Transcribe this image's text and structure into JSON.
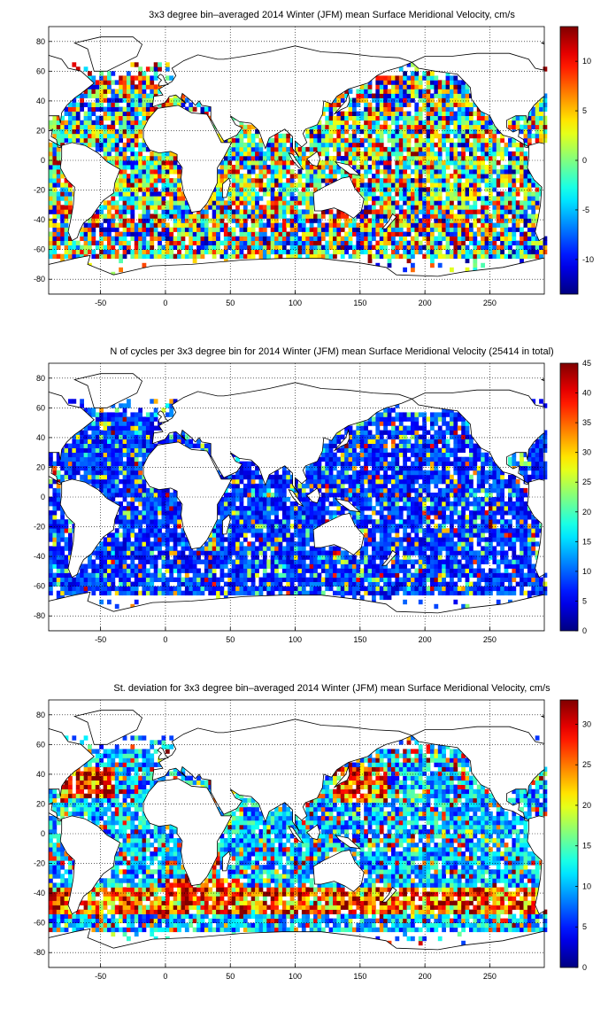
{
  "chart_data": [
    {
      "type": "heatmap",
      "title": "3x3 degree bin–averaged 2014 Winter (JFM) mean Surface Meridional Velocity, cm/s",
      "xlabel": "",
      "ylabel": "",
      "xlim": [
        -90,
        292
      ],
      "ylim": [
        -90,
        90
      ],
      "xticks": [
        "-50",
        "0",
        "50",
        "100",
        "150",
        "200",
        "250"
      ],
      "yticks": [
        "80",
        "60",
        "40",
        "20",
        "0",
        "-20",
        "-40",
        "-60",
        "-80"
      ],
      "colorbar": {
        "min": -13.5,
        "max": 13.5,
        "ticks": [
          "10",
          "5",
          "0",
          "-5",
          "-10"
        ],
        "tick_values": [
          10,
          5,
          0,
          -5,
          -10
        ],
        "colormap": "jet"
      },
      "grid": true,
      "field": "velocity"
    },
    {
      "type": "heatmap",
      "title": "N of cycles per 3x3 degree bin for 2014 Winter (JFM) mean Surface Meridional Velocity (25414 in total)",
      "xlabel": "",
      "ylabel": "",
      "xlim": [
        -90,
        292
      ],
      "ylim": [
        -90,
        90
      ],
      "xticks": [
        "-50",
        "0",
        "50",
        "100",
        "150",
        "200",
        "250"
      ],
      "yticks": [
        "80",
        "60",
        "40",
        "20",
        "0",
        "-20",
        "-40",
        "-60",
        "-80"
      ],
      "colorbar": {
        "min": 0,
        "max": 45,
        "ticks": [
          "45",
          "40",
          "35",
          "30",
          "25",
          "20",
          "15",
          "10",
          "5",
          "0"
        ],
        "tick_values": [
          45,
          40,
          35,
          30,
          25,
          20,
          15,
          10,
          5,
          0
        ],
        "colormap": "jet"
      },
      "grid": true,
      "field": "count"
    },
    {
      "type": "heatmap",
      "title": "St. deviation for 3x3 degree bin–averaged 2014 Winter (JFM) mean Surface Meridional Velocity, cm/s",
      "xlabel": "",
      "ylabel": "",
      "xlim": [
        -90,
        292
      ],
      "ylim": [
        -90,
        90
      ],
      "xticks": [
        "-50",
        "0",
        "50",
        "100",
        "150",
        "200",
        "250"
      ],
      "yticks": [
        "80",
        "60",
        "40",
        "20",
        "0",
        "-20",
        "-40",
        "-60",
        "-80"
      ],
      "colorbar": {
        "min": 0,
        "max": 33,
        "ticks": [
          "30",
          "25",
          "20",
          "15",
          "10",
          "5",
          "0"
        ],
        "tick_values": [
          30,
          25,
          20,
          15,
          10,
          5,
          0
        ],
        "colormap": "jet"
      },
      "grid": true,
      "field": "std"
    }
  ]
}
